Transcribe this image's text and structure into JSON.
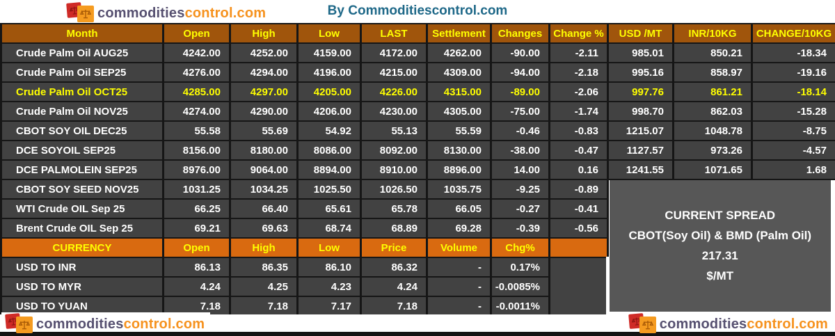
{
  "brand": {
    "logo_text_primary": "commodities",
    "logo_text_secondary": "control.com",
    "title": "By Commoditiescontrol.com"
  },
  "colors": {
    "futures_header_bg": "#a0550c",
    "currency_header_bg": "#d96a10",
    "row_bg": "#424242",
    "spread_box_bg": "#575757",
    "header_text": "#ffff00",
    "row_text": "#ffffff",
    "highlight_text": "#ffff00",
    "title_text": "#1e6888",
    "logo_primary": "#565070",
    "logo_secondary": "#f6921e"
  },
  "chart_data": [
    {
      "type": "table",
      "name": "futures_prices",
      "columns": [
        "Month",
        "Open",
        "High",
        "Low",
        "LAST",
        "Settlement",
        "Changes",
        "Change %",
        "USD /MT",
        "INR/10KG",
        "CHANGE/10KG"
      ],
      "rows": [
        [
          "Crude Palm Oil AUG25",
          "4242.00",
          "4252.00",
          "4159.00",
          "4172.00",
          "4262.00",
          "-90.00",
          "-2.11",
          "985.01",
          "850.21",
          "-18.34"
        ],
        [
          "Crude Palm Oil SEP25",
          "4276.00",
          "4294.00",
          "4196.00",
          "4215.00",
          "4309.00",
          "-94.00",
          "-2.18",
          "995.16",
          "858.97",
          "-19.16"
        ],
        [
          "Crude Palm Oil OCT25",
          "4285.00",
          "4297.00",
          "4205.00",
          "4226.00",
          "4315.00",
          "-89.00",
          "-2.06",
          "997.76",
          "861.21",
          "-18.14"
        ],
        [
          "Crude Palm Oil NOV25",
          "4274.00",
          "4290.00",
          "4206.00",
          "4230.00",
          "4305.00",
          "-75.00",
          "-1.74",
          "998.70",
          "862.03",
          "-15.28"
        ],
        [
          "CBOT SOY OIL DEC25",
          "55.58",
          "55.69",
          "54.92",
          "55.13",
          "55.59",
          "-0.46",
          "-0.83",
          "1215.07",
          "1048.78",
          "-8.75"
        ],
        [
          "DCE SOYOIL SEP25",
          "8156.00",
          "8180.00",
          "8086.00",
          "8092.00",
          "8130.00",
          "-38.00",
          "-0.47",
          "1127.57",
          "973.26",
          "-4.57"
        ],
        [
          "DCE PALMOLEIN SEP25",
          "8976.00",
          "9064.00",
          "8894.00",
          "8910.00",
          "8896.00",
          "14.00",
          "0.16",
          "1241.55",
          "1071.65",
          "1.68"
        ],
        [
          "CBOT SOY SEED NOV25",
          "1031.25",
          "1034.25",
          "1025.50",
          "1026.50",
          "1035.75",
          "-9.25",
          "-0.89"
        ],
        [
          "WTI Crude OIL Sep 25",
          "66.25",
          "66.40",
          "65.61",
          "65.78",
          "66.05",
          "-0.27",
          "-0.41"
        ],
        [
          "Brent Crude OIL Sep 25",
          "69.21",
          "69.63",
          "68.74",
          "68.89",
          "69.28",
          "-0.39",
          "-0.56"
        ]
      ],
      "highlighted_row": 2,
      "highlight_white_columns": [
        7
      ]
    },
    {
      "type": "table",
      "name": "currency_rates",
      "columns": [
        "CURRENCY",
        "Open",
        "High",
        "Low",
        "Price",
        "Volume",
        "Chg%",
        ""
      ],
      "rows": [
        [
          "USD TO INR",
          "86.13",
          "86.35",
          "86.10",
          "86.32",
          "-",
          "0.17%"
        ],
        [
          "USD TO MYR",
          "4.24",
          "4.25",
          "4.23",
          "4.24",
          "-",
          "-0.0085%"
        ],
        [
          "USD TO YUAN",
          "7.18",
          "7.18",
          "7.17",
          "7.18",
          "-",
          "-0.0011%"
        ]
      ]
    }
  ],
  "spread_box": {
    "title": "CURRENT SPREAD",
    "subtitle": "CBOT(Soy Oil) & BMD (Palm Oil)",
    "value": "217.31",
    "unit": "$/MT"
  }
}
